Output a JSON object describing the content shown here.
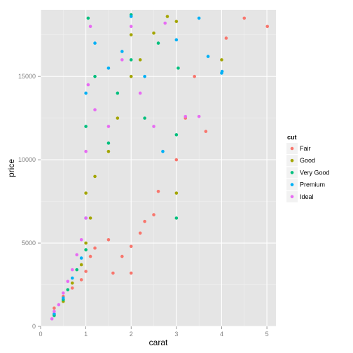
{
  "chart_data": {
    "type": "scatter",
    "title": "",
    "xlabel": "carat",
    "ylabel": "price",
    "xlim": [
      0,
      5.2
    ],
    "ylim": [
      0,
      19000
    ],
    "xticks": [
      0,
      1,
      2,
      3,
      4,
      5
    ],
    "yticks": [
      0,
      5000,
      10000,
      15000
    ],
    "x_tick_labels": [
      "0",
      "1",
      "2",
      "3",
      "4",
      "5"
    ],
    "y_tick_labels": [
      "0",
      "5000",
      "10000",
      "15000"
    ],
    "grid": true,
    "background": "#E5E5E5",
    "legend": {
      "title": "cut",
      "position": "right",
      "entries": [
        {
          "label": "Fair",
          "color": "#F8766D"
        },
        {
          "label": "Good",
          "color": "#A3A500"
        },
        {
          "label": "Very Good",
          "color": "#00BF7D"
        },
        {
          "label": "Premium",
          "color": "#00B0F6"
        },
        {
          "label": "Ideal",
          "color": "#E76BF3"
        }
      ]
    },
    "series": [
      {
        "name": "Fair",
        "color": "#F8766D",
        "points": [
          [
            0.3,
            1100
          ],
          [
            0.5,
            1800
          ],
          [
            0.7,
            2300
          ],
          [
            0.9,
            2800
          ],
          [
            1.0,
            3300
          ],
          [
            1.1,
            4200
          ],
          [
            1.2,
            4700
          ],
          [
            1.5,
            5200
          ],
          [
            1.6,
            3200
          ],
          [
            1.8,
            4200
          ],
          [
            2.0,
            3200
          ],
          [
            2.0,
            4800
          ],
          [
            2.2,
            5600
          ],
          [
            2.3,
            6300
          ],
          [
            2.5,
            6700
          ],
          [
            2.6,
            8100
          ],
          [
            3.0,
            10000
          ],
          [
            3.2,
            12500
          ],
          [
            3.4,
            15000
          ],
          [
            3.65,
            11700
          ],
          [
            4.1,
            17300
          ],
          [
            4.5,
            18500
          ],
          [
            5.01,
            18000
          ]
        ]
      },
      {
        "name": "Good",
        "color": "#A3A500",
        "points": [
          [
            0.3,
            700
          ],
          [
            0.5,
            1500
          ],
          [
            0.7,
            2600
          ],
          [
            0.9,
            3700
          ],
          [
            1.0,
            5000
          ],
          [
            1.0,
            8000
          ],
          [
            1.1,
            6500
          ],
          [
            1.2,
            9000
          ],
          [
            1.5,
            10500
          ],
          [
            1.7,
            12500
          ],
          [
            2.0,
            15000
          ],
          [
            2.0,
            17500
          ],
          [
            2.2,
            16000
          ],
          [
            2.5,
            17600
          ],
          [
            2.8,
            18600
          ],
          [
            3.0,
            18300
          ],
          [
            3.0,
            8000
          ],
          [
            4.0,
            16000
          ]
        ]
      },
      {
        "name": "Very Good",
        "color": "#00BF7D",
        "points": [
          [
            0.3,
            650
          ],
          [
            0.5,
            1600
          ],
          [
            0.6,
            2200
          ],
          [
            0.8,
            3400
          ],
          [
            1.0,
            4600
          ],
          [
            1.0,
            12000
          ],
          [
            1.05,
            18500
          ],
          [
            1.2,
            15000
          ],
          [
            1.5,
            11000
          ],
          [
            1.7,
            14000
          ],
          [
            2.0,
            16000
          ],
          [
            2.0,
            18700
          ],
          [
            2.3,
            12500
          ],
          [
            2.6,
            17000
          ],
          [
            3.0,
            6500
          ],
          [
            3.0,
            11500
          ],
          [
            3.04,
            15500
          ]
        ]
      },
      {
        "name": "Premium",
        "color": "#00B0F6",
        "points": [
          [
            0.3,
            750
          ],
          [
            0.5,
            1700
          ],
          [
            0.7,
            2900
          ],
          [
            0.9,
            4100
          ],
          [
            1.0,
            6500
          ],
          [
            1.0,
            14000
          ],
          [
            1.2,
            17000
          ],
          [
            1.5,
            15500
          ],
          [
            1.8,
            16500
          ],
          [
            2.0,
            18600
          ],
          [
            2.3,
            15000
          ],
          [
            2.7,
            10500
          ],
          [
            3.0,
            17200
          ],
          [
            3.5,
            18500
          ],
          [
            3.7,
            16200
          ],
          [
            4.0,
            15200
          ],
          [
            4.01,
            15300
          ]
        ]
      },
      {
        "name": "Ideal",
        "color": "#E76BF3",
        "points": [
          [
            0.25,
            450
          ],
          [
            0.3,
            900
          ],
          [
            0.4,
            1300
          ],
          [
            0.5,
            2000
          ],
          [
            0.6,
            2700
          ],
          [
            0.7,
            3400
          ],
          [
            0.8,
            4300
          ],
          [
            0.9,
            5200
          ],
          [
            1.0,
            6500
          ],
          [
            1.0,
            10500
          ],
          [
            1.05,
            14500
          ],
          [
            1.1,
            18000
          ],
          [
            1.2,
            13000
          ],
          [
            1.5,
            12000
          ],
          [
            1.8,
            16000
          ],
          [
            2.0,
            18000
          ],
          [
            2.2,
            14000
          ],
          [
            2.5,
            12000
          ],
          [
            2.75,
            18200
          ],
          [
            3.2,
            12600
          ],
          [
            3.5,
            12600
          ]
        ]
      }
    ]
  }
}
